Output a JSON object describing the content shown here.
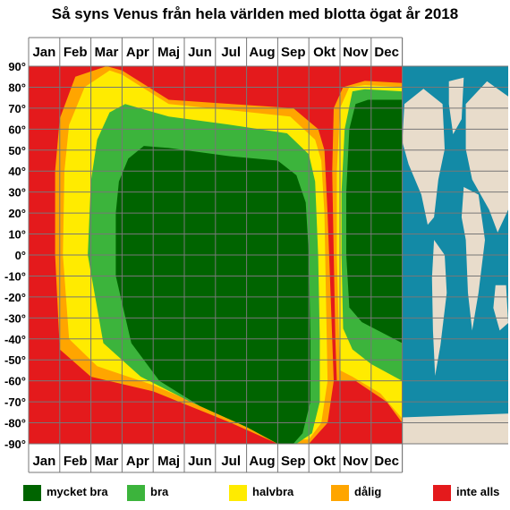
{
  "title": "Så syns Venus från hela världen med blotta ögat år 2018",
  "chart_data": {
    "type": "heatmap",
    "months": [
      "Jan",
      "Feb",
      "Mar",
      "Apr",
      "Maj",
      "Jun",
      "Jul",
      "Aug",
      "Sep",
      "Okt",
      "Nov",
      "Dec"
    ],
    "y_ticks": [
      "90°",
      "80°",
      "70°",
      "60°",
      "50°",
      "40°",
      "30°",
      "20°",
      "10°",
      "0°",
      "-10°",
      "-20°",
      "-30°",
      "-40°",
      "-50°",
      "-60°",
      "-70°",
      "-80°",
      "-90°"
    ],
    "ylim": [
      -90,
      90
    ],
    "x_range_months": [
      0,
      12
    ],
    "grid": true,
    "legend_position": "bottom",
    "categories": [
      {
        "key": "inte_alls",
        "label": "inte alls",
        "color": "#e41a1c"
      },
      {
        "key": "dalig",
        "label": "dålig",
        "color": "#ffa500"
      },
      {
        "key": "halvbra",
        "label": "halvbra",
        "color": "#ffeb00"
      },
      {
        "key": "bra",
        "label": "bra",
        "color": "#3cb43c"
      },
      {
        "key": "mycket_bra",
        "label": "mycket bra",
        "color": "#006400"
      }
    ],
    "regions": [
      {
        "category": "dalig",
        "month_lat_boundary": [
          [
            1.0,
            65
          ],
          [
            1.5,
            85
          ],
          [
            2.5,
            90
          ],
          [
            3.0,
            88
          ],
          [
            4.5,
            74
          ],
          [
            6.5,
            72
          ],
          [
            8.5,
            70
          ],
          [
            9.3,
            60
          ],
          [
            9.5,
            50
          ],
          [
            9.6,
            20
          ],
          [
            9.7,
            -20
          ],
          [
            9.8,
            -60
          ],
          [
            9.6,
            -80
          ],
          [
            9.0,
            -90
          ],
          [
            8.0,
            -90
          ],
          [
            6.5,
            -80
          ],
          [
            4.0,
            -65
          ],
          [
            2.0,
            -58
          ],
          [
            1.0,
            -45
          ],
          [
            0.85,
            0
          ],
          [
            0.85,
            40
          ]
        ]
      },
      {
        "category": "halvbra",
        "month_lat_boundary": [
          [
            1.3,
            62
          ],
          [
            1.8,
            80
          ],
          [
            2.6,
            88
          ],
          [
            3.0,
            86
          ],
          [
            4.5,
            72
          ],
          [
            6.5,
            69
          ],
          [
            8.4,
            66
          ],
          [
            9.2,
            55
          ],
          [
            9.4,
            45
          ],
          [
            9.5,
            20
          ],
          [
            9.55,
            -20
          ],
          [
            9.6,
            -60
          ],
          [
            9.4,
            -80
          ],
          [
            9.0,
            -88
          ],
          [
            8.1,
            -88
          ],
          [
            6.5,
            -78
          ],
          [
            4.0,
            -62
          ],
          [
            2.2,
            -53
          ],
          [
            1.3,
            -40
          ],
          [
            1.1,
            0
          ],
          [
            1.15,
            40
          ]
        ]
      },
      {
        "category": "bra",
        "month_lat_boundary": [
          [
            2.0,
            35
          ],
          [
            2.2,
            55
          ],
          [
            2.6,
            68
          ],
          [
            3.1,
            72
          ],
          [
            4.5,
            66
          ],
          [
            6.5,
            62
          ],
          [
            8.3,
            58
          ],
          [
            9.0,
            48
          ],
          [
            9.2,
            35
          ],
          [
            9.3,
            0
          ],
          [
            9.35,
            -40
          ],
          [
            9.35,
            -70
          ],
          [
            9.1,
            -85
          ],
          [
            8.6,
            -90
          ],
          [
            8.2,
            -90
          ],
          [
            7.0,
            -82
          ],
          [
            5.2,
            -70
          ],
          [
            3.6,
            -58
          ],
          [
            2.4,
            -42
          ],
          [
            1.9,
            0
          ]
        ]
      },
      {
        "category": "mycket_bra",
        "month_lat_boundary": [
          [
            2.9,
            35
          ],
          [
            3.2,
            46
          ],
          [
            3.7,
            52
          ],
          [
            4.5,
            51
          ],
          [
            6.5,
            47
          ],
          [
            8.0,
            45
          ],
          [
            8.6,
            38
          ],
          [
            8.9,
            25
          ],
          [
            9.0,
            0
          ],
          [
            9.05,
            -40
          ],
          [
            9.05,
            -70
          ],
          [
            8.8,
            -85
          ],
          [
            8.5,
            -90
          ],
          [
            8.0,
            -90
          ],
          [
            7.0,
            -82
          ],
          [
            5.5,
            -72
          ],
          [
            4.2,
            -60
          ],
          [
            3.3,
            -42
          ],
          [
            2.8,
            -10
          ],
          [
            2.8,
            20
          ]
        ]
      },
      {
        "category": "dalig",
        "month_lat_boundary": [
          [
            9.8,
            70
          ],
          [
            10.1,
            80
          ],
          [
            10.8,
            83
          ],
          [
            12,
            82
          ],
          [
            12,
            -80
          ],
          [
            11.5,
            -70
          ],
          [
            10.5,
            -60
          ],
          [
            9.9,
            -60
          ],
          [
            9.85,
            -40
          ],
          [
            9.8,
            0
          ],
          [
            9.75,
            40
          ]
        ]
      },
      {
        "category": "halvbra",
        "month_lat_boundary": [
          [
            10.0,
            70
          ],
          [
            10.3,
            80
          ],
          [
            10.8,
            81
          ],
          [
            12,
            80
          ],
          [
            12,
            -78
          ],
          [
            11.3,
            -66
          ],
          [
            10.4,
            -58
          ],
          [
            10.0,
            -55
          ],
          [
            9.95,
            -30
          ],
          [
            9.9,
            0
          ],
          [
            9.9,
            40
          ]
        ]
      },
      {
        "category": "bra",
        "month_lat_boundary": [
          [
            10.15,
            60
          ],
          [
            10.4,
            78
          ],
          [
            10.8,
            79
          ],
          [
            12,
            78
          ],
          [
            12,
            -60
          ],
          [
            11.0,
            -52
          ],
          [
            10.4,
            -45
          ],
          [
            10.1,
            -35
          ],
          [
            10.05,
            0
          ],
          [
            10.05,
            30
          ]
        ]
      },
      {
        "category": "mycket_bra",
        "month_lat_boundary": [
          [
            10.3,
            60
          ],
          [
            10.5,
            72
          ],
          [
            10.9,
            74
          ],
          [
            12,
            74
          ],
          [
            12,
            -42
          ],
          [
            10.7,
            -32
          ],
          [
            10.3,
            -25
          ],
          [
            10.2,
            0
          ],
          [
            10.2,
            30
          ]
        ]
      }
    ]
  },
  "legend": [
    {
      "label": "mycket bra",
      "color": "#006400"
    },
    {
      "label": "bra",
      "color": "#3cb43c"
    },
    {
      "label": "halvbra",
      "color": "#ffeb00"
    },
    {
      "label": "dålig",
      "color": "#ffa500"
    },
    {
      "label": "inte alls",
      "color": "#e41a1c"
    }
  ],
  "map": {
    "ocean_color": "#138aa6",
    "land_color": "#e8dccb"
  }
}
